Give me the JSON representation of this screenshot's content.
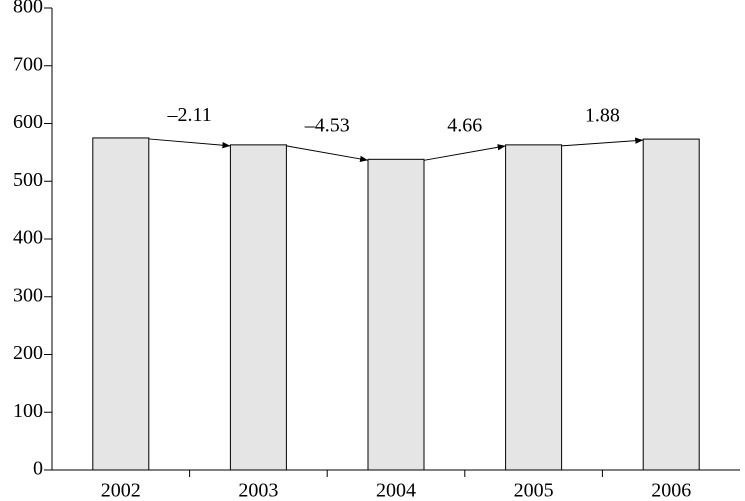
{
  "chart_data": {
    "type": "bar",
    "categories": [
      "2002",
      "2003",
      "2004",
      "2005",
      "2006"
    ],
    "values": [
      575,
      563,
      538,
      563,
      573
    ],
    "annotations": [
      "–2.11",
      "–4.53",
      "4.66",
      "1.88"
    ],
    "color": "#e5e5e5",
    "ylim": [
      0,
      800
    ],
    "yticks": [
      0,
      100,
      200,
      300,
      400,
      500,
      600,
      700,
      800
    ],
    "grid": false
  }
}
